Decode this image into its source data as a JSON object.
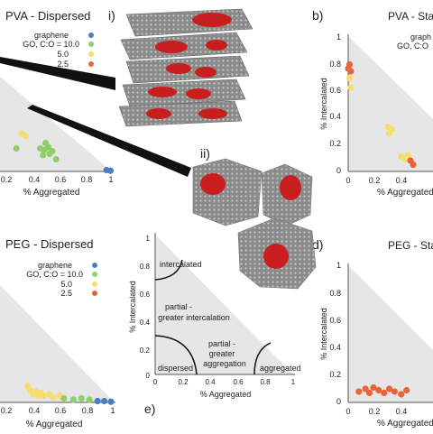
{
  "panel_labels": {
    "b": "b)",
    "d": "d)",
    "e": "e)",
    "i": "i)",
    "ii": "ii)"
  },
  "panel_titles": {
    "tl": "PVA - Dispersed",
    "tr": "PVA - Sta",
    "bl": "PEG - Dispersed",
    "br": "PEG - Sta"
  },
  "legend": {
    "tl": {
      "title": "graphene",
      "items": [
        "GO, C:O = 10.0",
        "5.0",
        "2.5"
      ]
    },
    "tr": {
      "title": "graph",
      "items": [
        "GO, C:O"
      ]
    },
    "bl": {
      "title": "graphene",
      "items": [
        "GO, C:O = 10.0",
        "5.0",
        "2.5"
      ]
    }
  },
  "series_colors": {
    "graphene": "#4a7fbf",
    "c10": "#8fcf6a",
    "c5": "#f7dc6f",
    "c2_5": "#e8643a"
  },
  "axis_labels": {
    "x": "% Aggregated",
    "y": "% Intercalated"
  },
  "ticks": {
    "tl_x": [
      "0.2",
      "0.4",
      "0.6",
      "0.8",
      "1"
    ],
    "tr_y": [
      "1",
      "0.8",
      "0.6",
      "0.4",
      "0.2",
      "0"
    ],
    "tr_x": [
      "0",
      "0.2",
      "0.4"
    ],
    "bl_x": [
      "0.2",
      "0.4",
      "0.6",
      "0.8",
      "1"
    ],
    "br_y": [
      "1",
      "0.8",
      "0.6",
      "0.4",
      "0.2",
      "0"
    ],
    "br_x": [
      "0",
      "0.2",
      "0.4"
    ],
    "e_y": [
      "1",
      "0.8",
      "0.6",
      "0.4",
      "0.2",
      "0"
    ],
    "e_x": [
      "0",
      "0.2",
      "0.4",
      "0.6",
      "0.8",
      "1"
    ]
  },
  "schematic_regions": {
    "intercalated": "intercalated",
    "partial_intercalation_1": "partial -",
    "partial_intercalation_2": "greater intercalation",
    "partial_aggregation_1": "partial -",
    "partial_aggregation_2": "greater",
    "partial_aggregation_3": "aggregation",
    "dispersed": "dispersed",
    "aggregated": "aggregated"
  },
  "scatter_points": {
    "tl": [
      {
        "agg": 0.32,
        "int": 0.28,
        "s": "c5"
      },
      {
        "agg": 0.35,
        "int": 0.26,
        "s": "c5"
      },
      {
        "agg": 0.46,
        "int": 0.17,
        "s": "c10"
      },
      {
        "agg": 0.49,
        "int": 0.16,
        "s": "c10"
      },
      {
        "agg": 0.52,
        "int": 0.18,
        "s": "c10"
      },
      {
        "agg": 0.5,
        "int": 0.21,
        "s": "c10"
      },
      {
        "agg": 0.55,
        "int": 0.15,
        "s": "c10"
      },
      {
        "agg": 0.53,
        "int": 0.13,
        "s": "c10"
      },
      {
        "agg": 0.48,
        "int": 0.12,
        "s": "c10"
      },
      {
        "agg": 0.58,
        "int": 0.09,
        "s": "c10"
      },
      {
        "agg": 0.28,
        "int": 0.17,
        "s": "c10"
      },
      {
        "agg": 0.96,
        "int": 0.01,
        "s": "graphene"
      },
      {
        "agg": 0.99,
        "int": 0.005,
        "s": "graphene"
      }
    ],
    "tr": [
      {
        "agg": 0.01,
        "int": 0.79,
        "s": "c2_5"
      },
      {
        "agg": 0.0,
        "int": 0.76,
        "s": "c2_5"
      },
      {
        "agg": 0.02,
        "int": 0.74,
        "s": "c2_5"
      },
      {
        "agg": 0.01,
        "int": 0.69,
        "s": "c5"
      },
      {
        "agg": 0.02,
        "int": 0.62,
        "s": "c5"
      },
      {
        "agg": 0.3,
        "int": 0.33,
        "s": "c5"
      },
      {
        "agg": 0.33,
        "int": 0.31,
        "s": "c5"
      },
      {
        "agg": 0.31,
        "int": 0.28,
        "s": "c5"
      },
      {
        "agg": 0.4,
        "int": 0.11,
        "s": "c5"
      },
      {
        "agg": 0.43,
        "int": 0.09,
        "s": "c5"
      },
      {
        "agg": 0.45,
        "int": 0.12,
        "s": "c5"
      },
      {
        "agg": 0.47,
        "int": 0.08,
        "s": "c2_5"
      },
      {
        "agg": 0.49,
        "int": 0.05,
        "s": "c2_5"
      }
    ],
    "bl": [
      {
        "agg": 0.36,
        "int": 0.12,
        "s": "c5"
      },
      {
        "agg": 0.38,
        "int": 0.09,
        "s": "c5"
      },
      {
        "agg": 0.4,
        "int": 0.06,
        "s": "c5"
      },
      {
        "agg": 0.42,
        "int": 0.08,
        "s": "c5"
      },
      {
        "agg": 0.44,
        "int": 0.05,
        "s": "c5"
      },
      {
        "agg": 0.46,
        "int": 0.07,
        "s": "c5"
      },
      {
        "agg": 0.48,
        "int": 0.05,
        "s": "c5"
      },
      {
        "agg": 0.52,
        "int": 0.06,
        "s": "c5"
      },
      {
        "agg": 0.55,
        "int": 0.04,
        "s": "c5"
      },
      {
        "agg": 0.6,
        "int": 0.05,
        "s": "c5"
      },
      {
        "agg": 0.63,
        "int": 0.03,
        "s": "c10"
      },
      {
        "agg": 0.7,
        "int": 0.02,
        "s": "c10"
      },
      {
        "agg": 0.76,
        "int": 0.03,
        "s": "c10"
      },
      {
        "agg": 0.82,
        "int": 0.02,
        "s": "c10"
      },
      {
        "agg": 0.88,
        "int": 0.01,
        "s": "graphene"
      },
      {
        "agg": 0.93,
        "int": 0.01,
        "s": "graphene"
      },
      {
        "agg": 0.98,
        "int": 0.005,
        "s": "graphene"
      }
    ],
    "br": [
      {
        "agg": 0.08,
        "int": 0.08,
        "s": "c2_5"
      },
      {
        "agg": 0.13,
        "int": 0.1,
        "s": "c2_5"
      },
      {
        "agg": 0.16,
        "int": 0.07,
        "s": "c2_5"
      },
      {
        "agg": 0.19,
        "int": 0.11,
        "s": "c2_5"
      },
      {
        "agg": 0.23,
        "int": 0.09,
        "s": "c2_5"
      },
      {
        "agg": 0.27,
        "int": 0.07,
        "s": "c2_5"
      },
      {
        "agg": 0.31,
        "int": 0.1,
        "s": "c2_5"
      },
      {
        "agg": 0.35,
        "int": 0.08,
        "s": "c2_5"
      },
      {
        "agg": 0.4,
        "int": 0.06,
        "s": "c2_5"
      },
      {
        "agg": 0.44,
        "int": 0.09,
        "s": "c2_5"
      }
    ]
  }
}
